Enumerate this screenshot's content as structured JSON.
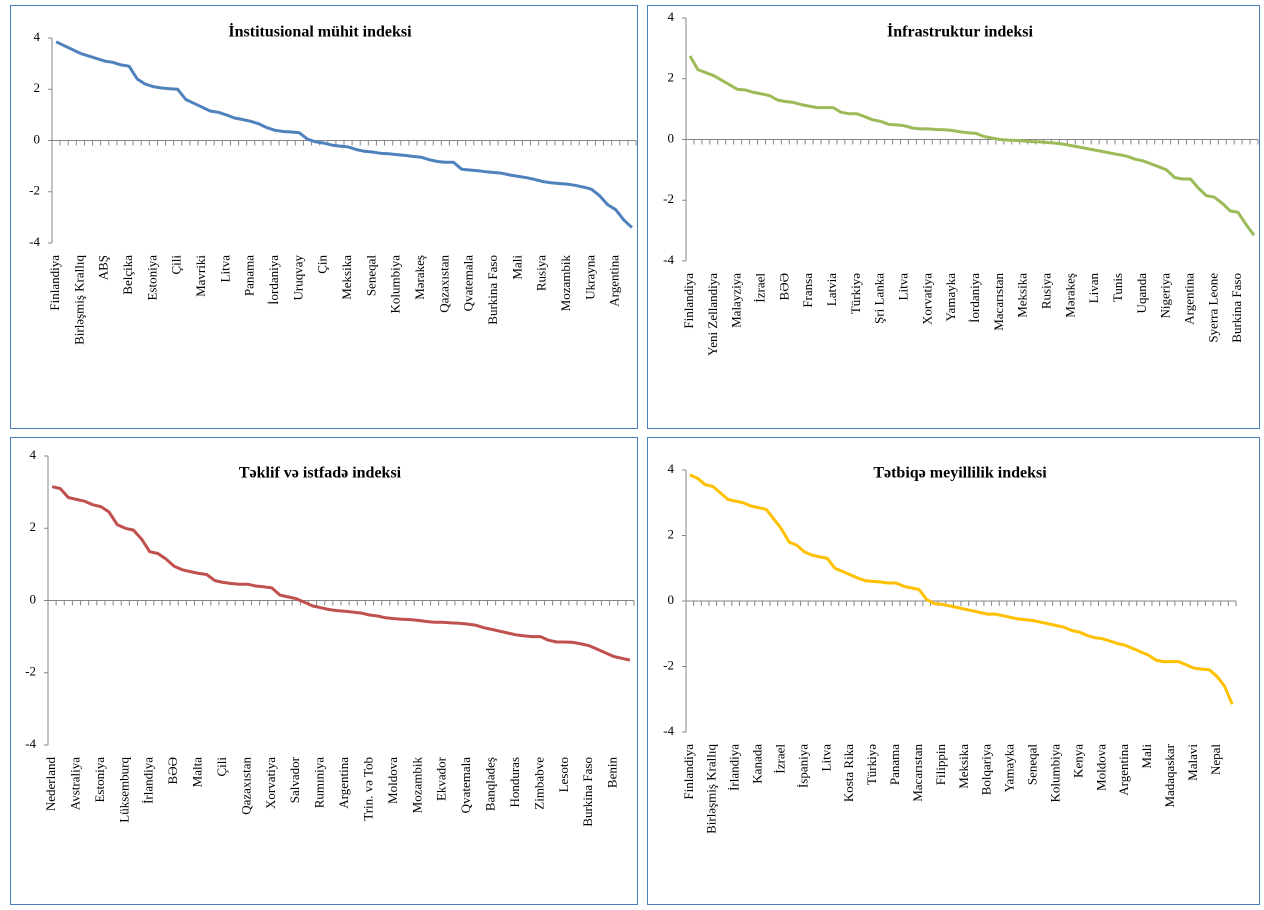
{
  "chart_data": [
    {
      "type": "line",
      "title": "İnstitusional mühit indeksi",
      "categories": [
        "Finlandiya",
        null,
        null,
        "Birləşmiş Krallıq",
        null,
        null,
        "ABŞ",
        null,
        null,
        "Belçika",
        null,
        null,
        "Estoniya",
        null,
        null,
        "Çili",
        null,
        null,
        "Mavriki",
        null,
        null,
        "Litva",
        null,
        null,
        "Panama",
        null,
        null,
        "İordaniya",
        null,
        null,
        "Uruqvay",
        null,
        null,
        "Çin",
        null,
        null,
        "Meksika",
        null,
        null,
        "Seneqal",
        null,
        null,
        "Kolumbiya",
        null,
        null,
        "Mərakeş",
        null,
        null,
        "Qazaxıstan",
        null,
        null,
        "Qvatemala",
        null,
        null,
        "Burkina Faso",
        null,
        null,
        "Mali",
        null,
        null,
        "Rusiya",
        null,
        null,
        "Mozambik",
        null,
        null,
        "Ukrayna",
        null,
        null,
        "Argentina",
        null,
        null
      ],
      "values": [
        3.85,
        3.7,
        3.55,
        3.4,
        3.3,
        3.2,
        3.1,
        3.05,
        2.95,
        2.9,
        2.4,
        2.2,
        2.1,
        2.05,
        2.02,
        2.0,
        1.6,
        1.45,
        1.3,
        1.15,
        1.1,
        1.0,
        0.88,
        0.82,
        0.75,
        0.65,
        0.5,
        0.4,
        0.35,
        0.33,
        0.3,
        0.05,
        -0.05,
        -0.1,
        -0.18,
        -0.22,
        -0.25,
        -0.35,
        -0.42,
        -0.45,
        -0.5,
        -0.52,
        -0.55,
        -0.58,
        -0.62,
        -0.65,
        -0.75,
        -0.82,
        -0.85,
        -0.85,
        -1.12,
        -1.15,
        -1.18,
        -1.22,
        -1.25,
        -1.28,
        -1.35,
        -1.4,
        -1.45,
        -1.52,
        -1.6,
        -1.65,
        -1.68,
        -1.7,
        -1.75,
        -1.82,
        -1.9,
        -2.15,
        -2.5,
        -2.7,
        -3.1,
        -3.4
      ],
      "color": "#4f81bd",
      "ylim": [
        -4,
        4
      ],
      "yticks": [
        -4,
        -2,
        0,
        2,
        4
      ]
    },
    {
      "type": "line",
      "title": "İnfrastruktur indeksi",
      "categories": [
        "Finlandiya",
        null,
        null,
        "Yeni Zellandiya",
        null,
        null,
        "Malayziya",
        null,
        null,
        "İzrael",
        null,
        null,
        "BƏƏ",
        null,
        null,
        "Fransa",
        null,
        null,
        "Latvia",
        null,
        null,
        "Türkiyə",
        null,
        null,
        "Şri Lanka",
        null,
        null,
        "Litva",
        null,
        null,
        "Xorvatiya",
        null,
        null,
        "Yamayka",
        null,
        null,
        "İordaniya",
        null,
        null,
        "Macarıstan",
        null,
        null,
        "Meksika",
        null,
        null,
        "Rusiya",
        null,
        null,
        "Mərakeş",
        null,
        null,
        "Livan",
        null,
        null,
        "Tunis",
        null,
        null,
        "Uqanda",
        null,
        null,
        "Nigeriya",
        null,
        null,
        "Argentina",
        null,
        null,
        "Syerra Leone",
        null,
        null,
        "Burkina Faso",
        null,
        null
      ],
      "values": [
        2.75,
        2.3,
        2.2,
        2.1,
        1.95,
        1.8,
        1.65,
        1.63,
        1.55,
        1.5,
        1.45,
        1.3,
        1.25,
        1.22,
        1.15,
        1.1,
        1.05,
        1.05,
        1.05,
        0.9,
        0.85,
        0.85,
        0.75,
        0.65,
        0.6,
        0.5,
        0.48,
        0.45,
        0.38,
        0.35,
        0.35,
        0.33,
        0.32,
        0.3,
        0.25,
        0.22,
        0.2,
        0.1,
        0.05,
        0.0,
        -0.02,
        -0.03,
        -0.05,
        -0.07,
        -0.08,
        -0.1,
        -0.12,
        -0.15,
        -0.2,
        -0.25,
        -0.3,
        -0.35,
        -0.4,
        -0.45,
        -0.5,
        -0.55,
        -0.65,
        -0.7,
        -0.8,
        -0.9,
        -1.0,
        -1.25,
        -1.3,
        -1.3,
        -1.6,
        -1.85,
        -1.9,
        -2.1,
        -2.35,
        -2.4,
        -2.8,
        -3.15
      ],
      "color": "#9bbb59",
      "ylim": [
        -4,
        4
      ],
      "yticks": [
        -4,
        -2,
        0,
        2,
        4
      ]
    },
    {
      "type": "line",
      "title": "Təklif və istfadə indeksi",
      "categories": [
        "Nederland",
        null,
        null,
        "Avstraliya",
        null,
        null,
        "Estoniya",
        null,
        null,
        "Lüksemburq",
        null,
        null,
        "İrlandiya",
        null,
        null,
        "BƏƏ",
        null,
        null,
        "Malta",
        null,
        null,
        "Çili",
        null,
        null,
        "Qazaxıstan",
        null,
        null,
        "Xorvatiya",
        null,
        null,
        "Salvador",
        null,
        null,
        "Rumıniya",
        null,
        null,
        "Argentina",
        null,
        null,
        "Trin. və Tob",
        null,
        null,
        "Moldova",
        null,
        null,
        "Mozambik",
        null,
        null,
        "Ekvador",
        null,
        null,
        "Qvatemala",
        null,
        null,
        "Banqladeş",
        null,
        null,
        "Honduras",
        null,
        null,
        "Zimbabve",
        null,
        null,
        "Lesoto",
        null,
        null,
        "Burkina Faso",
        null,
        null,
        "Benin",
        null,
        null
      ],
      "values": [
        3.15,
        3.1,
        2.85,
        2.8,
        2.75,
        2.65,
        2.6,
        2.45,
        2.1,
        2.0,
        1.95,
        1.7,
        1.35,
        1.3,
        1.15,
        0.95,
        0.85,
        0.8,
        0.75,
        0.72,
        0.55,
        0.5,
        0.47,
        0.45,
        0.45,
        0.4,
        0.38,
        0.35,
        0.15,
        0.1,
        0.05,
        -0.05,
        -0.15,
        -0.2,
        -0.25,
        -0.28,
        -0.3,
        -0.32,
        -0.35,
        -0.4,
        -0.43,
        -0.48,
        -0.5,
        -0.52,
        -0.53,
        -0.55,
        -0.58,
        -0.6,
        -0.6,
        -0.62,
        -0.63,
        -0.65,
        -0.68,
        -0.75,
        -0.8,
        -0.85,
        -0.9,
        -0.95,
        -0.98,
        -1.0,
        -1.0,
        -1.1,
        -1.15,
        -1.15,
        -1.16,
        -1.2,
        -1.25,
        -1.35,
        -1.45,
        -1.55,
        -1.6,
        -1.65
      ],
      "color": "#c0504d",
      "ylim": [
        -4,
        4
      ],
      "yticks": [
        -4,
        -2,
        0,
        2,
        4
      ]
    },
    {
      "type": "line",
      "title": "Tətbiqə meyillilik indeksi",
      "categories": [
        "Finlandiya",
        null,
        null,
        "Birləşmiş Krallıq",
        null,
        null,
        "İrlandiya",
        null,
        null,
        "Kanada",
        null,
        null,
        "İzrael",
        null,
        null,
        "İspaniya",
        null,
        null,
        "Litva",
        null,
        null,
        "Kosta Rika",
        null,
        null,
        "Türkiyə",
        null,
        null,
        "Panama",
        null,
        null,
        "Macarıstan",
        null,
        null,
        "Filippin",
        null,
        null,
        "Meksika",
        null,
        null,
        "Bolqariya",
        null,
        null,
        "Yamayka",
        null,
        null,
        "Seneqal",
        null,
        null,
        "Kolumbiya",
        null,
        null,
        "Kenya",
        null,
        null,
        "Moldova",
        null,
        null,
        "Argentina",
        null,
        null,
        "Mali",
        null,
        null,
        "Madaqaskar",
        null,
        null,
        "Malavi",
        null,
        null,
        "Nepal",
        null,
        null
      ],
      "values": [
        3.85,
        3.75,
        3.55,
        3.5,
        3.3,
        3.1,
        3.05,
        3.0,
        2.9,
        2.85,
        2.8,
        2.5,
        2.2,
        1.8,
        1.7,
        1.5,
        1.4,
        1.35,
        1.3,
        1.0,
        0.9,
        0.8,
        0.7,
        0.62,
        0.6,
        0.58,
        0.55,
        0.55,
        0.45,
        0.4,
        0.35,
        0.05,
        -0.08,
        -0.1,
        -0.15,
        -0.2,
        -0.25,
        -0.3,
        -0.35,
        -0.4,
        -0.4,
        -0.45,
        -0.5,
        -0.55,
        -0.57,
        -0.6,
        -0.65,
        -0.7,
        -0.75,
        -0.8,
        -0.9,
        -0.95,
        -1.05,
        -1.12,
        -1.15,
        -1.22,
        -1.3,
        -1.35,
        -1.45,
        -1.55,
        -1.65,
        -1.8,
        -1.85,
        -1.85,
        -1.85,
        -1.95,
        -2.05,
        -2.08,
        -2.1,
        -2.3,
        -2.6,
        -3.15
      ],
      "color": "#ffc000",
      "ylim": [
        -4,
        4
      ],
      "yticks": [
        -4,
        -2,
        0,
        2,
        4
      ]
    }
  ]
}
